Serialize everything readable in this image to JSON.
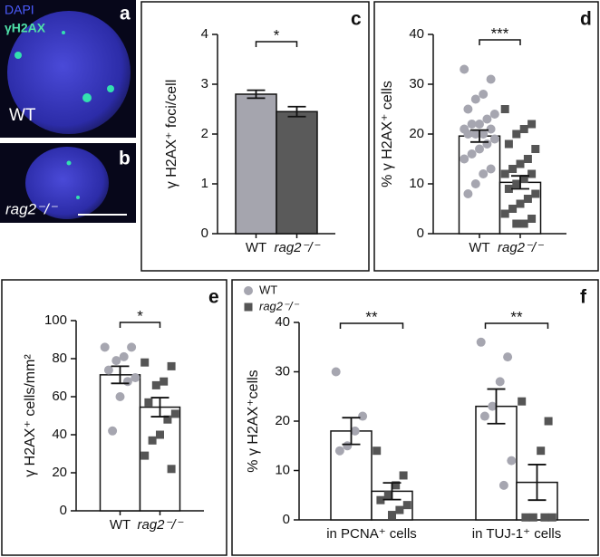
{
  "images": [
    {
      "panel": "a",
      "labels": [
        "DAPI",
        "γH2AX"
      ],
      "genotype": "WT"
    },
    {
      "panel": "b",
      "genotype": "rag2⁻/⁻"
    }
  ],
  "chart_data": [
    {
      "type": "bar",
      "panel": "c",
      "ylabel": "γ H2AX⁺ foci/cell",
      "categories": [
        "WT",
        "rag2⁻/⁻"
      ],
      "values": [
        2.8,
        2.45
      ],
      "errors": [
        0.08,
        0.1
      ],
      "colors": [
        "#a5a5ae",
        "#5a5a5a"
      ],
      "ylim": [
        0,
        4
      ],
      "yticks": [
        0,
        1,
        2,
        3,
        4
      ],
      "significance": [
        "*"
      ]
    },
    {
      "type": "bar",
      "panel": "d",
      "ylabel": "% γ H2AX⁺ cells",
      "categories": [
        "WT",
        "rag2⁻/⁻"
      ],
      "values": [
        19.6,
        10.3
      ],
      "errors": [
        1.2,
        1.3
      ],
      "colors": [
        "#ffffff",
        "#ffffff"
      ],
      "point_colors": [
        "#a6a6b0",
        "#555555"
      ],
      "points": [
        [
          33,
          31,
          28,
          27,
          25,
          24,
          23,
          22,
          22,
          21,
          21,
          20,
          20,
          20,
          19,
          18,
          17,
          16,
          15,
          13,
          12,
          10,
          8
        ],
        [
          25,
          22,
          21,
          20,
          18,
          17,
          15,
          14,
          13,
          12,
          12,
          11,
          10,
          9,
          8,
          7,
          6,
          5,
          4,
          3,
          2,
          2
        ]
      ],
      "ylim": [
        0,
        40
      ],
      "yticks": [
        0,
        10,
        20,
        30,
        40
      ],
      "significance": [
        "***"
      ]
    },
    {
      "type": "bar",
      "panel": "e",
      "ylabel": "γ H2AX⁺ cells/mm²",
      "categories": [
        "WT",
        "rag2⁻/⁻"
      ],
      "values": [
        71.5,
        54.5
      ],
      "errors": [
        4.5,
        5
      ],
      "colors": [
        "#ffffff",
        "#ffffff"
      ],
      "point_colors": [
        "#a6a6b0",
        "#555555"
      ],
      "points": [
        [
          86,
          86,
          81,
          79,
          74,
          70,
          68,
          60,
          42
        ],
        [
          78,
          76,
          68,
          66,
          57,
          51,
          48,
          40,
          37,
          29,
          22
        ]
      ],
      "ylim": [
        0,
        100
      ],
      "yticks": [
        0,
        20,
        40,
        60,
        80,
        100
      ],
      "significance": [
        "*"
      ]
    },
    {
      "type": "grouped_bar",
      "panel": "f",
      "ylabel": "% γ H2AX⁺cells",
      "categories": [
        "in PCNA⁺ cells",
        "in TUJ-1⁺ cells"
      ],
      "series": [
        {
          "name": "WT",
          "color": "#a6a6b0",
          "values": [
            18,
            23
          ],
          "errors": [
            2.7,
            3.5
          ],
          "points": [
            [
              30,
              21,
              18,
              15,
              14
            ],
            [
              36,
              33,
              28,
              23,
              21,
              12,
              7
            ]
          ]
        },
        {
          "name": "rag2⁻/⁻",
          "color": "#555555",
          "values": [
            5.8,
            7.6
          ],
          "errors": [
            1.7,
            3.6
          ],
          "points": [
            [
              14,
              9,
              7,
              5,
              4,
              3,
              2,
              1
            ],
            [
              24,
              20,
              14,
              0.5,
              0.5,
              0.5,
              0.5
            ]
          ]
        }
      ],
      "ylim": [
        0,
        40
      ],
      "yticks": [
        0,
        10,
        20,
        30,
        40
      ],
      "legend": "top-left",
      "significance": [
        "**",
        "**"
      ]
    }
  ]
}
